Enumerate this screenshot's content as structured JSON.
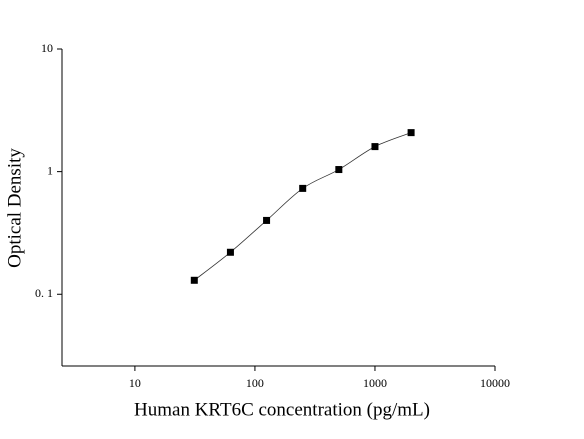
{
  "chart_data": {
    "type": "scatter",
    "xlabel": "Human KRT6C concentration (pg/mL)",
    "ylabel": "Optical Density",
    "x": [
      31.25,
      62.5,
      125,
      250,
      500,
      1000,
      2000
    ],
    "values": [
      0.13,
      0.22,
      0.4,
      0.73,
      1.04,
      1.6,
      2.08
    ],
    "color": "#000000",
    "xscale": "log",
    "yscale": "log",
    "xlim": [
      2.47,
      10000
    ],
    "ylim": [
      0.026,
      10
    ],
    "xticks": [
      10,
      100,
      1000,
      10000
    ],
    "yticks": [
      {
        "value": 0.1,
        "label": "0. 1"
      },
      1,
      10
    ],
    "fit_curve": true
  }
}
